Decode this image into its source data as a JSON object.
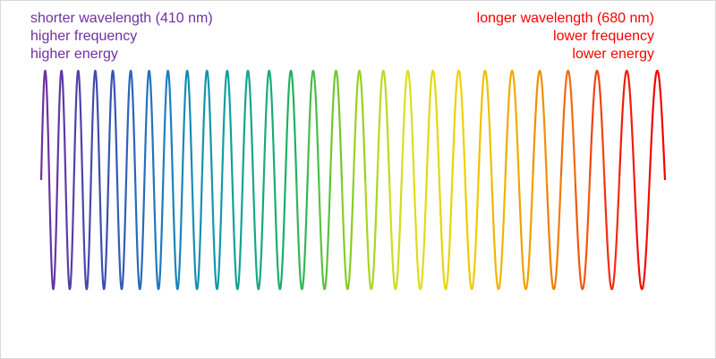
{
  "left_label": {
    "lines": [
      "shorter wavelength (410 nm)",
      "higher frequency",
      "higher energy"
    ]
  },
  "right_label": {
    "lines": [
      "longer wavelength (680 nm)",
      "lower frequency",
      "lower energy"
    ]
  }
}
